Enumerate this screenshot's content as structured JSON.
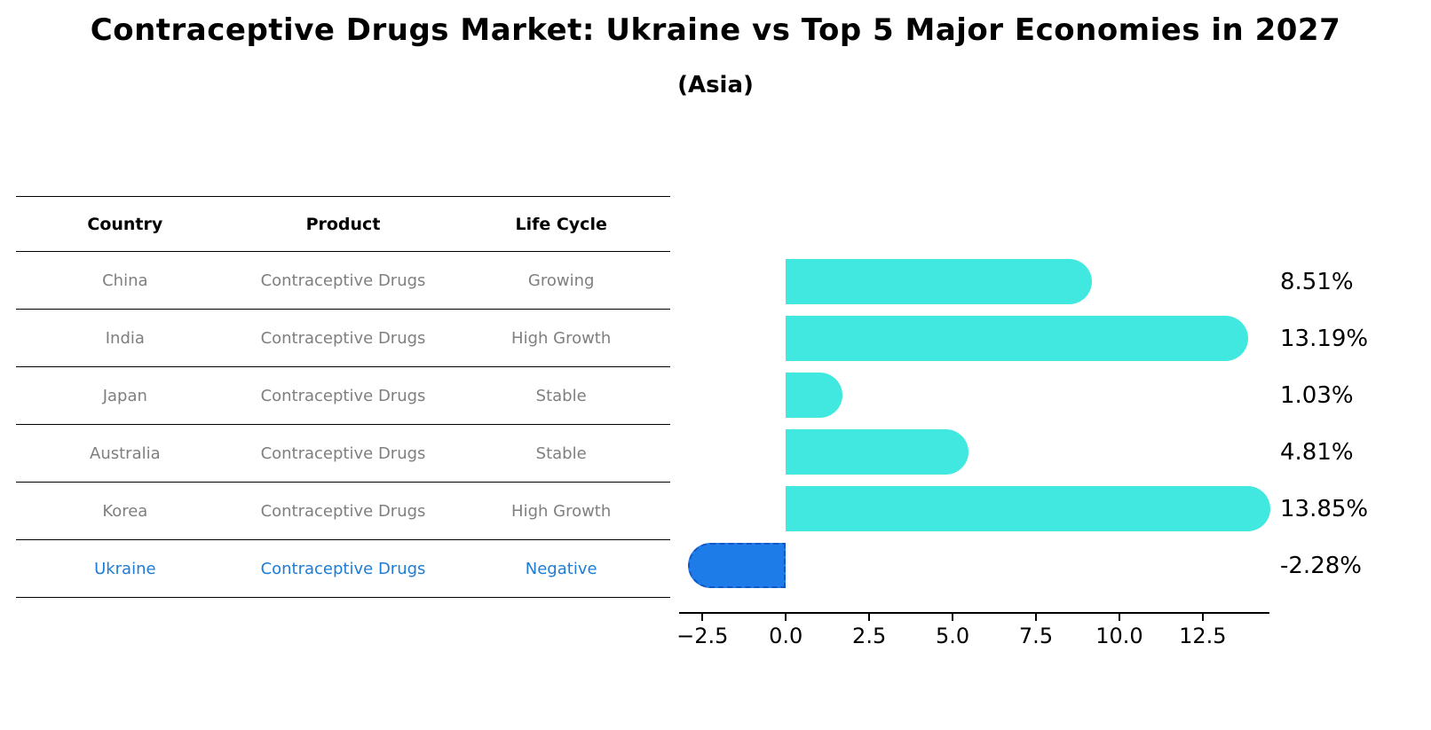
{
  "title": "Contraceptive Drugs Market: Ukraine vs Top 5 Major Economies in 2027",
  "subtitle": "(Asia)",
  "table": {
    "headers": [
      "Country",
      "Product",
      "Life Cycle"
    ],
    "rows": [
      {
        "country": "China",
        "product": "Contraceptive Drugs",
        "life_cycle": "Growing",
        "highlight": false
      },
      {
        "country": "India",
        "product": "Contraceptive Drugs",
        "life_cycle": "High Growth",
        "highlight": false
      },
      {
        "country": "Japan",
        "product": "Contraceptive Drugs",
        "life_cycle": "Stable",
        "highlight": false
      },
      {
        "country": "Australia",
        "product": "Contraceptive Drugs",
        "life_cycle": "Stable",
        "highlight": false
      },
      {
        "country": "Korea",
        "product": "Contraceptive Drugs",
        "life_cycle": "High Growth",
        "highlight": false
      },
      {
        "country": "Ukraine",
        "product": "Contraceptive Drugs",
        "life_cycle": "Negative",
        "highlight": true
      }
    ]
  },
  "chart_data": {
    "type": "bar",
    "orientation": "horizontal",
    "title": "Contraceptive Drugs Market: Ukraine vs Top 5 Major Economies in 2027",
    "subtitle": "(Asia)",
    "categories": [
      "China",
      "India",
      "Japan",
      "Australia",
      "Korea",
      "Ukraine"
    ],
    "values": [
      8.51,
      13.19,
      1.03,
      4.81,
      13.85,
      -2.28
    ],
    "value_labels": [
      "8.51%",
      "13.19%",
      "1.03%",
      "4.81%",
      "13.85%",
      "-2.28%"
    ],
    "xlim": [
      -3.2,
      14.5
    ],
    "x_ticks": [
      -2.5,
      0.0,
      2.5,
      5.0,
      7.5,
      10.0,
      12.5
    ],
    "x_tick_labels": [
      "−2.5",
      "0.0",
      "2.5",
      "5.0",
      "7.5",
      "10.0",
      "12.5"
    ],
    "grid": false,
    "legend": false,
    "bar_color": "#40E8DF",
    "highlight_color": "#1E7CE8",
    "highlight_border_color": "#1256C4",
    "highlight_index": 5
  },
  "colors": {
    "highlight_text": "#1C7CD6",
    "table_text": "#7F7F7F",
    "axis_text": "#000000"
  }
}
